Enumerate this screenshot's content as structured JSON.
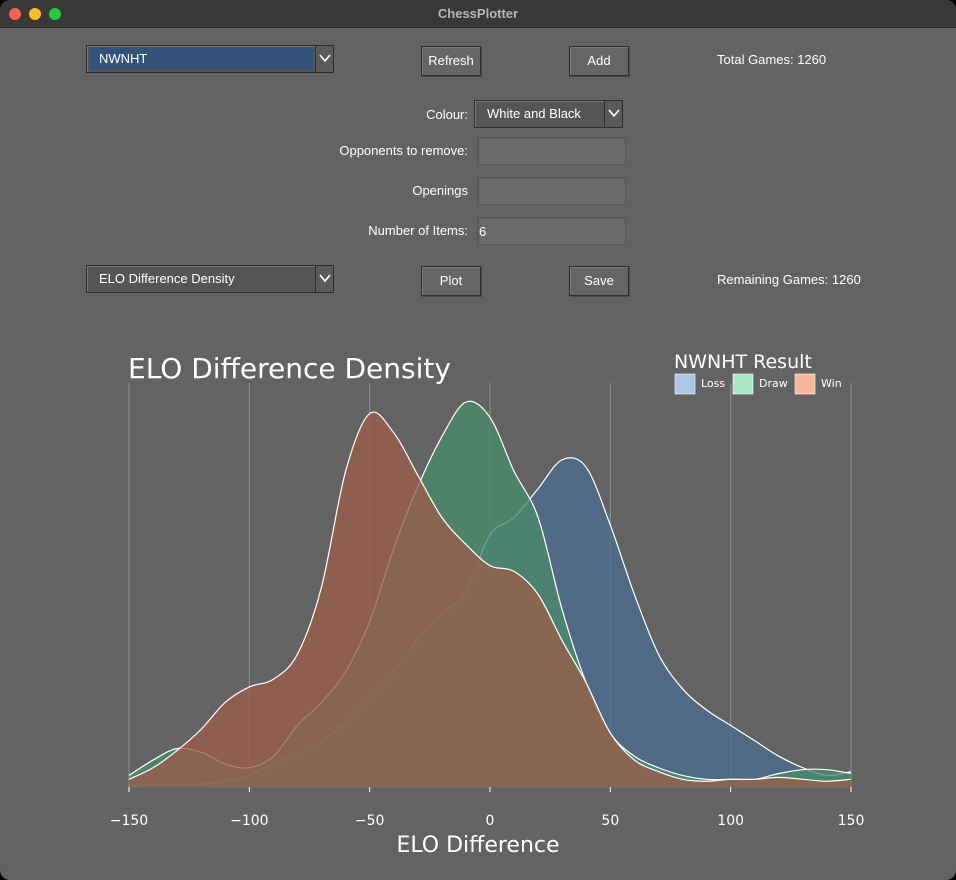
{
  "window": {
    "title": "ChessPlotter"
  },
  "controls": {
    "player_select": {
      "value": "NWNHT"
    },
    "refresh_label": "Refresh",
    "add_label": "Add",
    "total_games": "Total Games: 1260",
    "colour_label": "Colour:",
    "colour_select": {
      "value": "White and Black"
    },
    "opponents_label": "Opponents to remove:",
    "opponents_value": "",
    "openings_label": "Openings",
    "openings_value": "",
    "items_label": "Number of Items:",
    "items_value": "6",
    "plot_type_select": {
      "value": "ELO Difference Density"
    },
    "plot_label": "Plot",
    "save_label": "Save",
    "remaining_games": "Remaining Games: 1260"
  },
  "icons": {
    "dropdown": "chevron-down-icon"
  },
  "chart_data": {
    "type": "area",
    "title": "ELO Difference Density",
    "xlabel": "ELO Difference",
    "ylabel": "",
    "xlim": [
      -150,
      150
    ],
    "x_ticks": [
      -150,
      -100,
      -50,
      0,
      50,
      100,
      150
    ],
    "x_tick_labels": [
      "−150",
      "−100",
      "−50",
      "0",
      "50",
      "100",
      "150"
    ],
    "grid": "vertical",
    "legend": {
      "title": "NWNHT Result",
      "position": "top-right"
    },
    "x": [
      -150,
      -140,
      -130,
      -120,
      -110,
      -100,
      -90,
      -80,
      -70,
      -60,
      -50,
      -40,
      -30,
      -20,
      -10,
      0,
      10,
      20,
      30,
      40,
      50,
      60,
      70,
      80,
      90,
      100,
      110,
      120,
      130,
      140,
      150
    ],
    "series": [
      {
        "name": "Loss",
        "color": "#a9c8e8",
        "fill": "#4a6b8f",
        "values": [
          0.004,
          0.005,
          0.005,
          0.008,
          0.015,
          0.03,
          0.06,
          0.085,
          0.12,
          0.17,
          0.235,
          0.3,
          0.385,
          0.45,
          0.51,
          0.655,
          0.7,
          0.775,
          0.85,
          0.83,
          0.68,
          0.5,
          0.345,
          0.255,
          0.2,
          0.16,
          0.12,
          0.08,
          0.05,
          0.03,
          0.04
        ]
      },
      {
        "name": "Draw",
        "color": "#a8e6c4",
        "fill": "#4a8a6a",
        "values": [
          0.03,
          0.07,
          0.1,
          0.09,
          0.06,
          0.05,
          0.08,
          0.16,
          0.22,
          0.3,
          0.43,
          0.62,
          0.78,
          0.91,
          1.0,
          0.96,
          0.82,
          0.7,
          0.46,
          0.27,
          0.14,
          0.08,
          0.05,
          0.03,
          0.02,
          0.02,
          0.02,
          0.035,
          0.045,
          0.045,
          0.035
        ]
      },
      {
        "name": "Win",
        "color": "#f4b89c",
        "fill": "#9a5d4a",
        "values": [
          0.02,
          0.05,
          0.095,
          0.15,
          0.22,
          0.26,
          0.28,
          0.345,
          0.52,
          0.82,
          0.97,
          0.92,
          0.81,
          0.7,
          0.63,
          0.575,
          0.56,
          0.5,
          0.38,
          0.27,
          0.14,
          0.07,
          0.04,
          0.02,
          0.015,
          0.02,
          0.02,
          0.025,
          0.02,
          0.015,
          0.02
        ]
      }
    ]
  }
}
